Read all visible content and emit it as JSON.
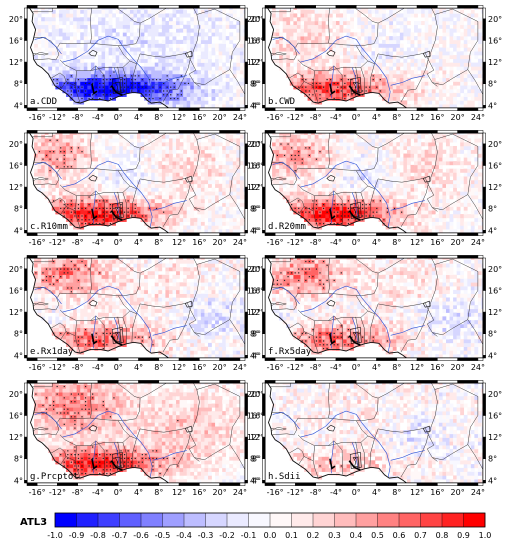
{
  "panels": [
    {
      "label": "a.CDD",
      "pattern": "neg_south"
    },
    {
      "label": "b.CWD",
      "pattern": "pos_south"
    },
    {
      "label": "c.R10mm",
      "pattern": "pos_strong"
    },
    {
      "label": "d.R20mm",
      "pattern": "pos_strong"
    },
    {
      "label": "e.Rx1day",
      "pattern": "mixed_pos"
    },
    {
      "label": "f.Rx5day",
      "pattern": "mixed_pos"
    },
    {
      "label": "g.Prcptot",
      "pattern": "pos_broad"
    },
    {
      "label": "h.Sdii",
      "pattern": "weak"
    }
  ],
  "x_ticks": [
    "-16°",
    "-12°",
    "-8°",
    "-4°",
    "0°",
    "4°",
    "8°",
    "12°",
    "16°",
    "20°",
    "24°"
  ],
  "y_ticks": [
    "4°",
    "8°",
    "12°",
    "16°",
    "20°"
  ],
  "colorbar": {
    "title": "ATL3",
    "ticks": [
      "-1.0",
      "-0.9",
      "-0.8",
      "-0.7",
      "-0.6",
      "-0.5",
      "-0.4",
      "-0.3",
      "-0.2",
      "-0.1",
      "0.0",
      "0.1",
      "0.2",
      "0.3",
      "0.4",
      "0.5",
      "0.6",
      "0.7",
      "0.8",
      "0.9",
      "1.0"
    ],
    "colors": [
      "#0000ff",
      "#2020ff",
      "#3f3fff",
      "#6060ff",
      "#8080ff",
      "#9f9fff",
      "#bdbdff",
      "#d6d6ff",
      "#eaeaff",
      "#f8f8ff",
      "#fff8f8",
      "#ffeaea",
      "#ffd4d4",
      "#ffbcbc",
      "#ffa0a0",
      "#ff8282",
      "#ff6464",
      "#ff4444",
      "#ff2222",
      "#ff0000"
    ]
  }
}
